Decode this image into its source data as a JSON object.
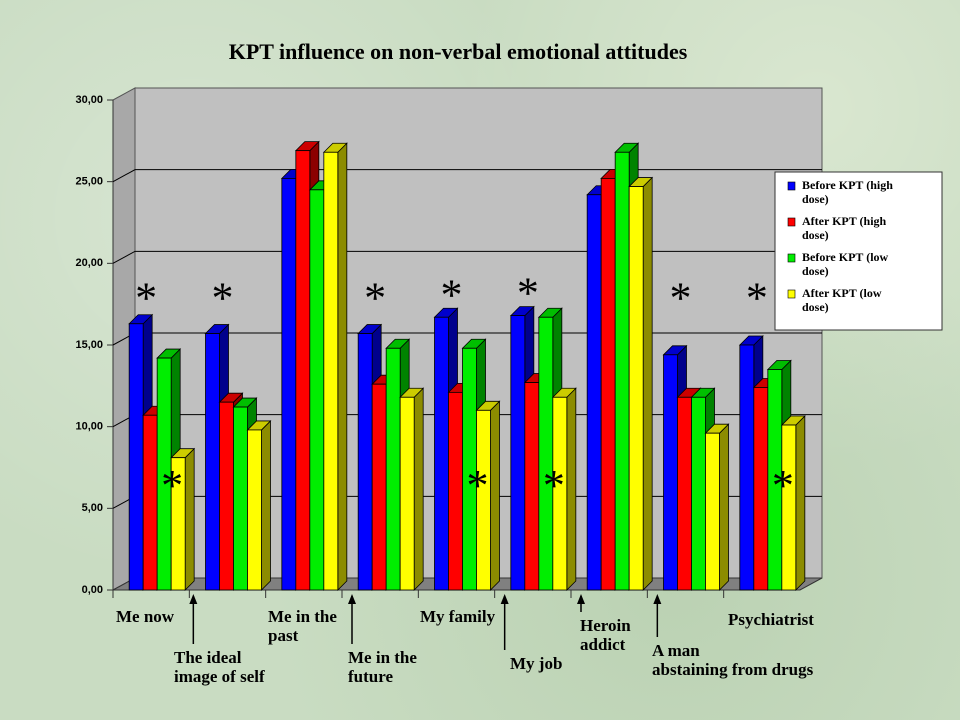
{
  "chart_data": {
    "type": "bar3d",
    "title": "KPT influence on non-verbal emotional attitudes",
    "categories": [
      "Me now",
      "The  ideal\nimage of self",
      "Me in the\n  past",
      "Me in the\n future",
      "My family",
      "My job",
      "Heroin\naddict",
      "A man\nabstaining from drugs",
      "Psychiatrist"
    ],
    "series": [
      {
        "name": "Before KPT (high dose)",
        "color": "#0000ff",
        "values": [
          16.3,
          15.7,
          25.2,
          15.7,
          16.7,
          16.8,
          24.2,
          14.4,
          15.0
        ]
      },
      {
        "name": "After KPT (high dose)",
        "color": "#ff0000",
        "values": [
          10.7,
          11.5,
          26.9,
          12.6,
          12.1,
          12.7,
          25.2,
          11.8,
          12.4
        ]
      },
      {
        "name": "Before KPT (low dose)",
        "color": "#00ee00",
        "values": [
          14.2,
          11.2,
          24.5,
          14.8,
          14.8,
          16.7,
          26.8,
          11.8,
          13.5
        ]
      },
      {
        "name": "After KPT (low dose)",
        "color": "#ffff00",
        "values": [
          8.1,
          9.8,
          26.8,
          11.8,
          11.0,
          11.8,
          24.7,
          9.6,
          10.1
        ]
      }
    ],
    "ylim": [
      0,
      30
    ],
    "yticks": [
      {
        "value": 0,
        "label": "0,00"
      },
      {
        "value": 5,
        "label": "5,00"
      },
      {
        "value": 10,
        "label": "10,00"
      },
      {
        "value": 15,
        "label": "15,00"
      },
      {
        "value": 20,
        "label": "20,00"
      },
      {
        "value": 25,
        "label": "25,00"
      },
      {
        "value": 30,
        "label": "30,00"
      }
    ],
    "grid": true,
    "legend": "right",
    "annotations": [
      {
        "text": "*",
        "category": "Me now",
        "series": "After KPT (high dose)"
      },
      {
        "text": "*",
        "category": "The  ideal\nimage of self",
        "series": "After KPT (high dose)"
      },
      {
        "text": "*",
        "category": "Me in the\n future",
        "series": "After KPT (high dose)"
      },
      {
        "text": "*",
        "category": "My family",
        "series": "After KPT (high dose)"
      },
      {
        "text": "*",
        "category": "My job",
        "series": "After KPT (high dose)"
      },
      {
        "text": "*",
        "category": "A man\nabstaining from drugs",
        "series": "After KPT (high dose)"
      },
      {
        "text": "*",
        "category": "Psychiatrist",
        "series": "After KPT (high dose)"
      },
      {
        "text": "*",
        "category": "Me now",
        "series": "After KPT (low dose)"
      },
      {
        "text": "*",
        "category": "My family",
        "series": "After KPT (low dose)"
      },
      {
        "text": "*",
        "category": "My job",
        "series": "After KPT (low dose)"
      },
      {
        "text": "*",
        "category": "Psychiatrist",
        "series": "After KPT (low dose)"
      }
    ]
  }
}
